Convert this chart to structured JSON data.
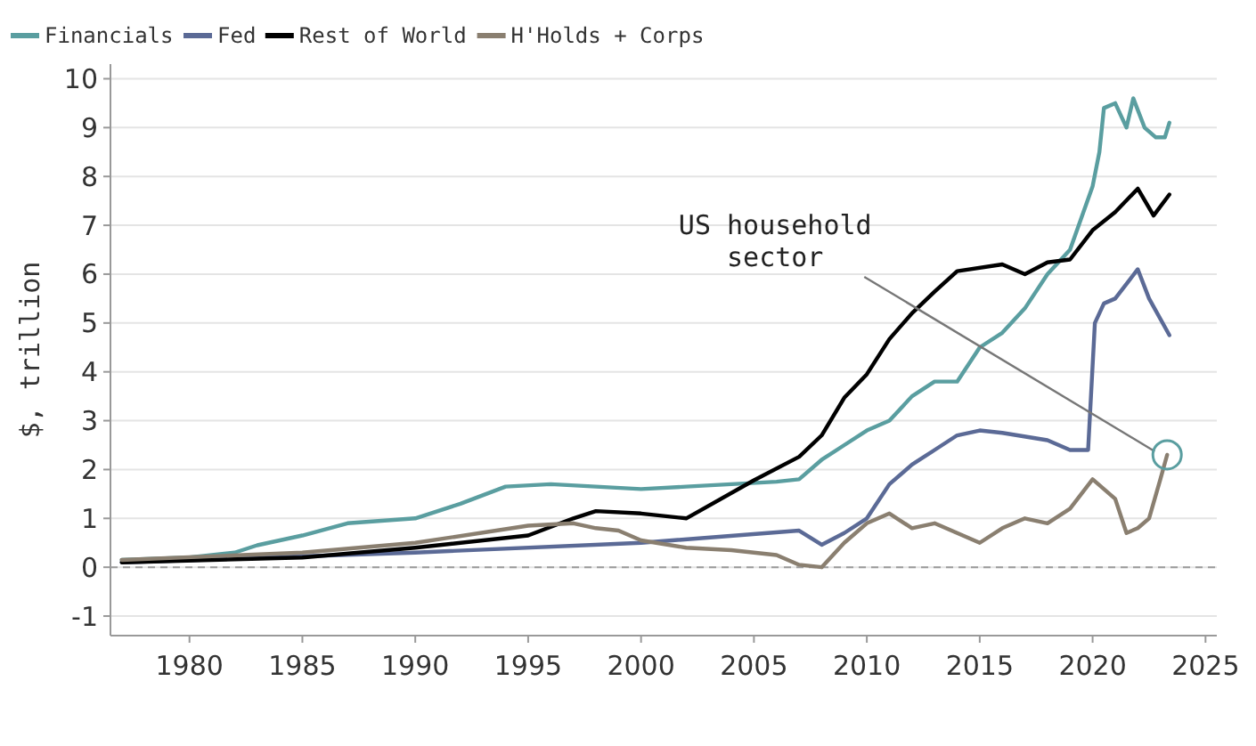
{
  "chart_data": {
    "type": "line",
    "ylabel": "$, trillion",
    "xlim": [
      1976.5,
      2025.5
    ],
    "xticks": [
      1980,
      1985,
      1990,
      1995,
      2000,
      2005,
      2010,
      2015,
      2020,
      2025
    ],
    "ylim": [
      -1.4,
      10.3
    ],
    "yticks": [
      -1,
      0,
      1,
      2,
      3,
      4,
      5,
      6,
      7,
      8,
      9,
      10
    ],
    "grid": "y",
    "legend": "top left",
    "line_style": "solid",
    "marker": "none",
    "ref_lines": [
      {
        "axis": "y",
        "value": 0,
        "color": "#9a9a9a",
        "line_style": "dashed"
      }
    ],
    "annotations": [
      {
        "text": "US household\nsector",
        "x": 2023.3,
        "y": 2.3
      }
    ],
    "series": [
      {
        "name": "Financials",
        "color": "#5a9ea0",
        "x": [
          1977,
          1980,
          1982,
          1983,
          1985,
          1987,
          1990,
          1992,
          1994,
          1996,
          1998,
          2000,
          2002,
          2004,
          2006,
          2007,
          2008,
          2009,
          2010,
          2011,
          2012,
          2013,
          2014,
          2015,
          2016,
          2017,
          2018,
          2019,
          2020,
          2020.3,
          2020.5,
          2021,
          2021.5,
          2021.8,
          2022.3,
          2022.8,
          2023.2,
          2023.4
        ],
        "values": [
          0.15,
          0.2,
          0.3,
          0.45,
          0.65,
          0.9,
          1.0,
          1.3,
          1.65,
          1.7,
          1.65,
          1.6,
          1.65,
          1.7,
          1.75,
          1.8,
          2.2,
          2.5,
          2.8,
          3.0,
          3.5,
          3.8,
          3.8,
          4.5,
          4.8,
          5.3,
          6.0,
          6.5,
          7.8,
          8.5,
          9.4,
          9.5,
          9.0,
          9.6,
          9.0,
          8.8,
          8.8,
          9.1
        ]
      },
      {
        "name": "Fed",
        "color": "#5b6a96",
        "x": [
          1977,
          1990,
          2000,
          2007,
          2008,
          2009,
          2010,
          2011,
          2012,
          2013,
          2014,
          2015,
          2016,
          2018,
          2019,
          2019.8,
          2020.1,
          2020.5,
          2021,
          2022,
          2022.5,
          2023.4
        ],
        "values": [
          0.1,
          0.3,
          0.5,
          0.75,
          0.46,
          0.7,
          1.0,
          1.7,
          2.1,
          2.4,
          2.7,
          2.8,
          2.75,
          2.6,
          2.4,
          2.4,
          5.0,
          5.4,
          5.5,
          6.1,
          5.5,
          4.75
        ]
      },
      {
        "name": "Rest of World",
        "color": "#000000",
        "x": [
          1977,
          1985,
          1990,
          1995,
          1997,
          1998,
          2000,
          2002,
          2005,
          2007,
          2008,
          2009,
          2010,
          2011,
          2012,
          2013,
          2014,
          2016,
          2017,
          2018,
          2019,
          2020,
          2021,
          2022,
          2022.7,
          2023.4
        ],
        "values": [
          0.1,
          0.2,
          0.4,
          0.65,
          1.0,
          1.15,
          1.1,
          1.0,
          1.78,
          2.26,
          2.7,
          3.47,
          3.95,
          4.67,
          5.2,
          5.64,
          6.06,
          6.2,
          6.0,
          6.24,
          6.3,
          6.9,
          7.27,
          7.75,
          7.2,
          7.63
        ]
      },
      {
        "name": "H'Holds + Corps",
        "color": "#8a7f70",
        "x": [
          1977,
          1985,
          1990,
          1995,
          1997,
          1998,
          1999,
          2000,
          2002,
          2004,
          2006,
          2007,
          2008,
          2009,
          2010,
          2011,
          2012,
          2013,
          2014,
          2015,
          2016,
          2017,
          2018,
          2019,
          2020,
          2021,
          2021.5,
          2022,
          2022.5,
          2023,
          2023.3
        ],
        "values": [
          0.15,
          0.3,
          0.5,
          0.85,
          0.9,
          0.8,
          0.75,
          0.55,
          0.4,
          0.35,
          0.25,
          0.05,
          0.0,
          0.5,
          0.9,
          1.1,
          0.8,
          0.9,
          0.7,
          0.5,
          0.8,
          1.0,
          0.9,
          1.2,
          1.8,
          1.4,
          0.7,
          0.8,
          1.0,
          1.8,
          2.3
        ]
      }
    ]
  }
}
